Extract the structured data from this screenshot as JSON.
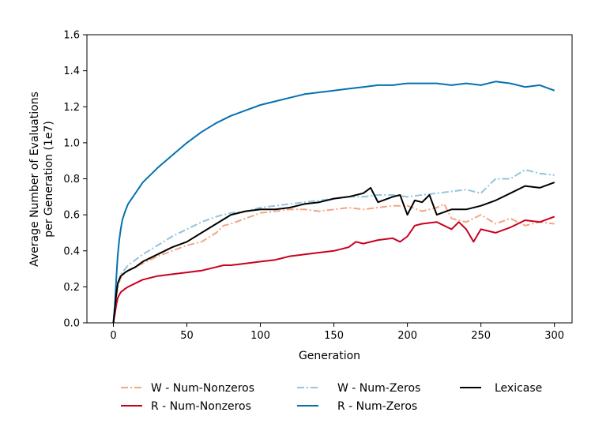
{
  "chart_data": {
    "type": "line",
    "xlabel": "Generation",
    "ylabel_line1": "Average Number of Evaluations",
    "ylabel_line2": "per Generation (1e7)",
    "xlim": [
      -18,
      312
    ],
    "ylim": [
      0,
      1.6
    ],
    "xticks": [
      0,
      50,
      100,
      150,
      200,
      250,
      300
    ],
    "yticks": [
      0.0,
      0.2,
      0.4,
      0.6,
      0.8,
      1.0,
      1.2,
      1.4,
      1.6
    ],
    "ytick_labels": [
      "0.0",
      "0.2",
      "0.4",
      "0.6",
      "0.8",
      "1.0",
      "1.2",
      "1.4",
      "1.6"
    ],
    "grid": false,
    "legend_position": "bottom",
    "series": [
      {
        "name": "W - Num-Nonzeros",
        "color": "#f4a582",
        "dash": "dashdot",
        "width": 2,
        "x": [
          0,
          1,
          2,
          3,
          5,
          8,
          10,
          15,
          20,
          25,
          30,
          40,
          50,
          60,
          70,
          75,
          80,
          90,
          100,
          110,
          120,
          130,
          140,
          150,
          160,
          170,
          180,
          190,
          200,
          210,
          220,
          225,
          230,
          240,
          250,
          260,
          270,
          280,
          290,
          300
        ],
        "y": [
          0.0,
          0.06,
          0.14,
          0.2,
          0.25,
          0.28,
          0.29,
          0.31,
          0.33,
          0.35,
          0.37,
          0.4,
          0.43,
          0.45,
          0.5,
          0.54,
          0.55,
          0.58,
          0.61,
          0.62,
          0.63,
          0.63,
          0.62,
          0.63,
          0.64,
          0.63,
          0.64,
          0.65,
          0.65,
          0.62,
          0.64,
          0.66,
          0.58,
          0.56,
          0.6,
          0.55,
          0.58,
          0.54,
          0.56,
          0.55
        ]
      },
      {
        "name": "R - Num-Nonzeros",
        "color": "#ca0020",
        "dash": "solid",
        "width": 2,
        "x": [
          0,
          1,
          2,
          3,
          5,
          8,
          10,
          15,
          20,
          30,
          40,
          50,
          60,
          70,
          75,
          80,
          90,
          100,
          110,
          120,
          130,
          140,
          150,
          160,
          165,
          170,
          180,
          190,
          195,
          200,
          205,
          210,
          220,
          230,
          235,
          240,
          245,
          250,
          260,
          270,
          280,
          290,
          300
        ],
        "y": [
          0.0,
          0.05,
          0.1,
          0.14,
          0.17,
          0.19,
          0.2,
          0.22,
          0.24,
          0.26,
          0.27,
          0.28,
          0.29,
          0.31,
          0.32,
          0.32,
          0.33,
          0.34,
          0.35,
          0.37,
          0.38,
          0.39,
          0.4,
          0.42,
          0.45,
          0.44,
          0.46,
          0.47,
          0.45,
          0.48,
          0.54,
          0.55,
          0.56,
          0.52,
          0.56,
          0.52,
          0.45,
          0.52,
          0.5,
          0.53,
          0.57,
          0.56,
          0.59
        ]
      },
      {
        "name": "W - Num-Zeros",
        "color": "#92c5de",
        "dash": "dashdot",
        "width": 2,
        "x": [
          0,
          1,
          2,
          3,
          5,
          8,
          10,
          15,
          20,
          30,
          40,
          50,
          60,
          70,
          80,
          90,
          100,
          110,
          120,
          130,
          140,
          150,
          160,
          170,
          180,
          190,
          200,
          210,
          220,
          230,
          240,
          250,
          260,
          270,
          280,
          290,
          300
        ],
        "y": [
          0.0,
          0.07,
          0.16,
          0.22,
          0.27,
          0.3,
          0.32,
          0.35,
          0.38,
          0.43,
          0.48,
          0.52,
          0.56,
          0.59,
          0.61,
          0.62,
          0.64,
          0.65,
          0.66,
          0.67,
          0.68,
          0.69,
          0.7,
          0.7,
          0.71,
          0.71,
          0.7,
          0.71,
          0.72,
          0.73,
          0.74,
          0.72,
          0.8,
          0.8,
          0.85,
          0.83,
          0.82
        ]
      },
      {
        "name": "R - Num-Zeros",
        "color": "#0571b0",
        "dash": "solid",
        "width": 2,
        "x": [
          0,
          1,
          2,
          3,
          4,
          5,
          6,
          8,
          10,
          15,
          20,
          25,
          30,
          40,
          50,
          60,
          70,
          80,
          90,
          100,
          110,
          120,
          130,
          140,
          150,
          160,
          170,
          180,
          190,
          200,
          210,
          220,
          230,
          240,
          250,
          260,
          270,
          280,
          290,
          300
        ],
        "y": [
          0.0,
          0.1,
          0.25,
          0.38,
          0.46,
          0.52,
          0.57,
          0.62,
          0.66,
          0.72,
          0.78,
          0.82,
          0.86,
          0.93,
          1.0,
          1.06,
          1.11,
          1.15,
          1.18,
          1.21,
          1.23,
          1.25,
          1.27,
          1.28,
          1.29,
          1.3,
          1.31,
          1.32,
          1.32,
          1.33,
          1.33,
          1.33,
          1.32,
          1.33,
          1.32,
          1.34,
          1.33,
          1.31,
          1.32,
          1.29
        ]
      },
      {
        "name": "Lexicase",
        "color": "#000000",
        "dash": "solid",
        "width": 2,
        "x": [
          0,
          1,
          2,
          3,
          5,
          8,
          10,
          15,
          20,
          30,
          40,
          50,
          60,
          70,
          80,
          90,
          100,
          110,
          120,
          130,
          140,
          150,
          160,
          170,
          175,
          180,
          190,
          195,
          200,
          205,
          210,
          215,
          220,
          230,
          240,
          250,
          260,
          270,
          280,
          290,
          300
        ],
        "y": [
          0.0,
          0.08,
          0.16,
          0.22,
          0.26,
          0.28,
          0.29,
          0.31,
          0.34,
          0.38,
          0.42,
          0.45,
          0.5,
          0.55,
          0.6,
          0.62,
          0.63,
          0.63,
          0.64,
          0.66,
          0.67,
          0.69,
          0.7,
          0.72,
          0.75,
          0.67,
          0.7,
          0.71,
          0.6,
          0.68,
          0.67,
          0.71,
          0.6,
          0.63,
          0.63,
          0.65,
          0.68,
          0.72,
          0.76,
          0.75,
          0.78
        ]
      }
    ]
  }
}
